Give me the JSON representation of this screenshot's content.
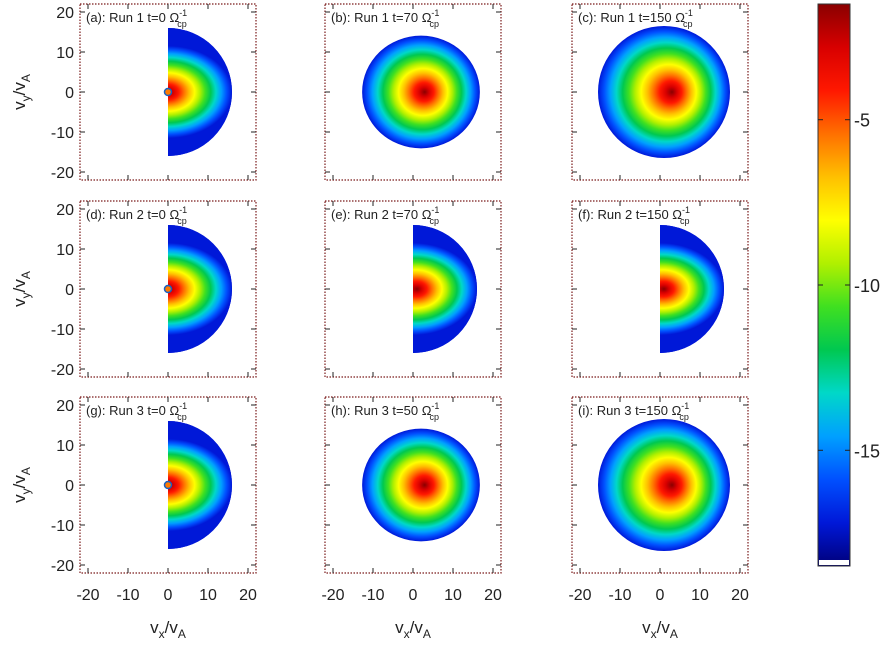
{
  "chart_data": {
    "type": "heatmap",
    "grid": {
      "rows": 3,
      "cols": 3
    },
    "axes": {
      "xlim": [
        -22,
        22
      ],
      "ylim": [
        -22,
        22
      ],
      "xticks": [
        -20,
        -10,
        0,
        10,
        20
      ],
      "yticks": [
        -20,
        -10,
        0,
        10,
        20
      ],
      "xlabel": {
        "base": "v",
        "sub1": "x",
        "mid": "/v",
        "sub2": "A"
      },
      "ylabel": {
        "base": "v",
        "sub1": "y",
        "mid": "/v",
        "sub2": "A"
      }
    },
    "panels": [
      {
        "id": "a",
        "prefix": "(a): Run 1 t=0 ",
        "omega": "Ω",
        "sup": "-1",
        "sub": "cp",
        "shape": "half",
        "radius": 16,
        "peak": [
          0,
          0
        ],
        "ring": true
      },
      {
        "id": "b",
        "prefix": "(b): Run 1 t=70 ",
        "omega": "Ω",
        "sup": "-1",
        "sub": "cp",
        "shape": "blob",
        "radius": 16,
        "peak": [
          1,
          0
        ],
        "ring": false
      },
      {
        "id": "c",
        "prefix": "(c): Run 1 t=150 ",
        "omega": "Ω",
        "sup": "-1",
        "sub": "cp",
        "shape": "disk",
        "radius": 16.5,
        "peak": [
          2,
          0
        ],
        "ring": false
      },
      {
        "id": "d",
        "prefix": "(d): Run 2 t=0 ",
        "omega": "Ω",
        "sup": "-1",
        "sub": "cp",
        "shape": "half",
        "radius": 16,
        "peak": [
          0,
          0
        ],
        "ring": true
      },
      {
        "id": "e",
        "prefix": "(e): Run 2 t=70 ",
        "omega": "Ω",
        "sup": "-1",
        "sub": "cp",
        "shape": "half",
        "radius": 16,
        "peak": [
          1,
          0
        ],
        "ring": false
      },
      {
        "id": "f",
        "prefix": "(f): Run 2 t=150 ",
        "omega": "Ω",
        "sup": "-1",
        "sub": "cp",
        "shape": "half",
        "radius": 16,
        "peak": [
          1,
          0
        ],
        "ring": false
      },
      {
        "id": "g",
        "prefix": "(g): Run 3 t=0 ",
        "omega": "Ω",
        "sup": "-1",
        "sub": "cp",
        "shape": "half",
        "radius": 16,
        "peak": [
          0,
          0
        ],
        "ring": true
      },
      {
        "id": "h",
        "prefix": "(h): Run 3 t=50 ",
        "omega": "Ω",
        "sup": "-1",
        "sub": "cp",
        "shape": "blob",
        "radius": 16,
        "peak": [
          1,
          0
        ],
        "ring": false
      },
      {
        "id": "i",
        "prefix": "(i): Run 3 t=150 ",
        "omega": "Ω",
        "sup": "-1",
        "sub": "cp",
        "shape": "disk",
        "radius": 16.5,
        "peak": [
          2,
          0
        ],
        "ring": false
      }
    ],
    "colorbar": {
      "range": [
        -18.5,
        -1.5
      ],
      "ticks": [
        -5,
        -10,
        -15
      ],
      "colors": [
        "#00007a",
        "#0018d8",
        "#0050ff",
        "#00a0ff",
        "#00d8c8",
        "#00c850",
        "#40e020",
        "#b0f000",
        "#ffff00",
        "#ffc000",
        "#ff7000",
        "#ff1800",
        "#d80000",
        "#8a0000"
      ]
    }
  }
}
